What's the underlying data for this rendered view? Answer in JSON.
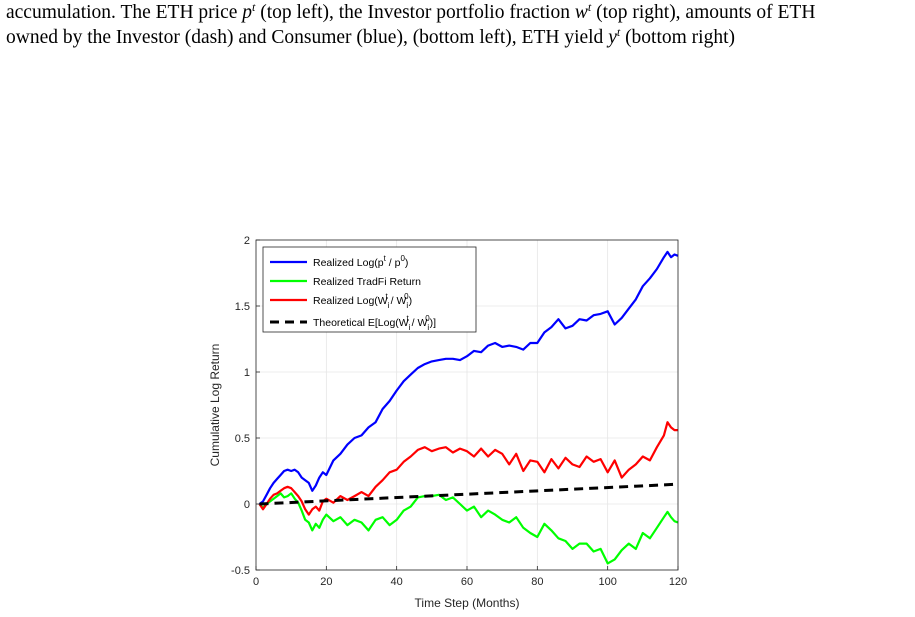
{
  "caption": {
    "line1": {
      "a": "accumulation. The ETH price ",
      "a_var": "p",
      "a_sup": "t",
      "b": " (top left), the Investor portfolio fraction ",
      "b_var": "w",
      "b_sup": "t",
      "c": " (top right), amounts of ETH"
    },
    "line2": {
      "a": "owned by the Investor (dash) and Consumer (blue), (bottom left), ETH yield ",
      "a_var": "y",
      "a_sup": "t",
      "b": " (bottom right)"
    }
  },
  "chart_data": {
    "type": "line",
    "xlabel": "Time Step (Months)",
    "ylabel": "Cumulative Log Return",
    "xlim": [
      0,
      120
    ],
    "ylim": [
      -0.5,
      2
    ],
    "xticks": [
      0,
      20,
      40,
      60,
      80,
      100,
      120
    ],
    "yticks": [
      -0.5,
      0,
      0.5,
      1,
      1.5,
      2
    ],
    "ytick_labels": [
      "-0.5",
      "0",
      "0.5",
      "1",
      "1.5",
      "2"
    ],
    "grid": true,
    "legend_position": "top-left",
    "series": [
      {
        "name": "Realized Log(pᵗ / p⁰)",
        "color": "#0000ff",
        "style": "solid",
        "x": [
          1,
          2,
          3,
          4,
          5,
          6,
          7,
          8,
          9,
          10,
          11,
          12,
          13,
          14,
          15,
          16,
          17,
          18,
          19,
          20,
          22,
          24,
          26,
          28,
          30,
          32,
          34,
          36,
          38,
          40,
          42,
          44,
          46,
          48,
          50,
          52,
          54,
          56,
          58,
          60,
          62,
          64,
          66,
          68,
          70,
          72,
          74,
          76,
          78,
          80,
          82,
          84,
          86,
          88,
          90,
          92,
          94,
          96,
          98,
          100,
          102,
          104,
          106,
          108,
          110,
          112,
          114,
          116,
          117,
          118,
          119,
          120
        ],
        "y": [
          0.0,
          0.02,
          0.07,
          0.12,
          0.16,
          0.19,
          0.22,
          0.25,
          0.26,
          0.25,
          0.26,
          0.24,
          0.2,
          0.18,
          0.16,
          0.1,
          0.14,
          0.2,
          0.24,
          0.22,
          0.33,
          0.38,
          0.45,
          0.5,
          0.52,
          0.58,
          0.62,
          0.72,
          0.78,
          0.86,
          0.93,
          0.98,
          1.03,
          1.06,
          1.08,
          1.09,
          1.1,
          1.1,
          1.09,
          1.12,
          1.16,
          1.15,
          1.2,
          1.22,
          1.19,
          1.2,
          1.19,
          1.17,
          1.22,
          1.22,
          1.3,
          1.34,
          1.4,
          1.33,
          1.35,
          1.4,
          1.39,
          1.43,
          1.44,
          1.46,
          1.36,
          1.41,
          1.48,
          1.55,
          1.65,
          1.71,
          1.78,
          1.87,
          1.91,
          1.87,
          1.89,
          1.88
        ]
      },
      {
        "name": "Realized TradFi Return",
        "color": "#00ff00",
        "style": "solid",
        "x": [
          1,
          2,
          3,
          4,
          5,
          6,
          7,
          8,
          9,
          10,
          11,
          12,
          13,
          14,
          15,
          16,
          17,
          18,
          19,
          20,
          22,
          24,
          26,
          28,
          30,
          32,
          34,
          36,
          38,
          40,
          42,
          44,
          46,
          48,
          50,
          52,
          54,
          56,
          58,
          60,
          62,
          64,
          66,
          68,
          70,
          72,
          74,
          76,
          78,
          80,
          82,
          84,
          86,
          88,
          90,
          92,
          94,
          96,
          98,
          100,
          102,
          104,
          106,
          108,
          110,
          112,
          114,
          116,
          117,
          118,
          119,
          120
        ],
        "y": [
          0.0,
          -0.03,
          0.0,
          0.02,
          0.04,
          0.06,
          0.08,
          0.05,
          0.06,
          0.08,
          0.04,
          0.01,
          -0.05,
          -0.12,
          -0.14,
          -0.2,
          -0.15,
          -0.18,
          -0.12,
          -0.08,
          -0.13,
          -0.1,
          -0.16,
          -0.12,
          -0.14,
          -0.2,
          -0.12,
          -0.1,
          -0.16,
          -0.12,
          -0.05,
          -0.02,
          0.05,
          0.06,
          0.06,
          0.07,
          0.03,
          0.05,
          0.0,
          -0.05,
          -0.02,
          -0.1,
          -0.05,
          -0.08,
          -0.12,
          -0.14,
          -0.1,
          -0.18,
          -0.22,
          -0.25,
          -0.15,
          -0.2,
          -0.26,
          -0.28,
          -0.34,
          -0.3,
          -0.3,
          -0.36,
          -0.34,
          -0.45,
          -0.42,
          -0.35,
          -0.3,
          -0.34,
          -0.22,
          -0.26,
          -0.18,
          -0.1,
          -0.06,
          -0.1,
          -0.13,
          -0.14
        ]
      },
      {
        "name": "Realized Log(Wᵢᵗ / Wᵢ⁰)",
        "color": "#ff0000",
        "style": "solid",
        "x": [
          1,
          2,
          3,
          4,
          5,
          6,
          7,
          8,
          9,
          10,
          11,
          12,
          13,
          14,
          15,
          16,
          17,
          18,
          19,
          20,
          22,
          24,
          26,
          28,
          30,
          32,
          34,
          36,
          38,
          40,
          42,
          44,
          46,
          48,
          50,
          52,
          54,
          56,
          58,
          60,
          62,
          64,
          66,
          68,
          70,
          72,
          74,
          76,
          78,
          80,
          82,
          84,
          86,
          88,
          90,
          92,
          94,
          96,
          98,
          100,
          102,
          104,
          106,
          108,
          110,
          112,
          114,
          116,
          117,
          118,
          119,
          120
        ],
        "y": [
          0.0,
          -0.04,
          0.0,
          0.04,
          0.07,
          0.08,
          0.1,
          0.12,
          0.13,
          0.12,
          0.09,
          0.06,
          0.02,
          -0.04,
          -0.08,
          -0.04,
          -0.02,
          -0.05,
          0.02,
          0.04,
          0.01,
          0.06,
          0.03,
          0.06,
          0.09,
          0.06,
          0.13,
          0.18,
          0.24,
          0.26,
          0.32,
          0.36,
          0.41,
          0.43,
          0.4,
          0.42,
          0.43,
          0.39,
          0.42,
          0.4,
          0.36,
          0.42,
          0.36,
          0.41,
          0.38,
          0.3,
          0.38,
          0.25,
          0.33,
          0.32,
          0.24,
          0.34,
          0.27,
          0.35,
          0.3,
          0.28,
          0.36,
          0.32,
          0.34,
          0.24,
          0.33,
          0.2,
          0.26,
          0.3,
          0.36,
          0.33,
          0.43,
          0.52,
          0.62,
          0.58,
          0.56,
          0.56
        ]
      },
      {
        "name": "Theoretical E[Log(Wᵢᵗ / Wᵢ⁰)]",
        "color": "#000000",
        "style": "dashed",
        "x": [
          1,
          120
        ],
        "y": [
          0.0,
          0.15
        ]
      }
    ]
  }
}
